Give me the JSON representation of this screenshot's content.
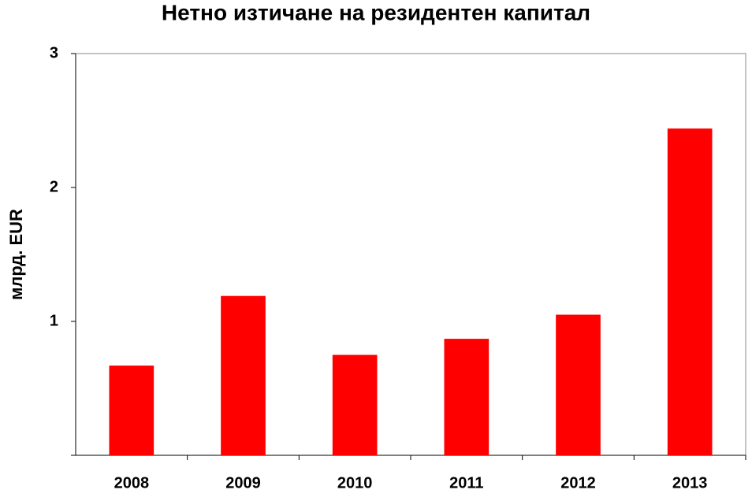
{
  "chart_data": {
    "type": "bar",
    "title": "Нетно изтичане на резидентен капитал",
    "y_label": "млрд. EUR",
    "categories": [
      "2008",
      "2009",
      "2010",
      "2011",
      "2012",
      "2013"
    ],
    "values": [
      0.67,
      1.19,
      0.75,
      0.87,
      1.05,
      2.44
    ],
    "color": "#ff0000",
    "ylim": [
      0,
      3
    ],
    "yticks": [
      1,
      2,
      3
    ],
    "grid": false
  }
}
